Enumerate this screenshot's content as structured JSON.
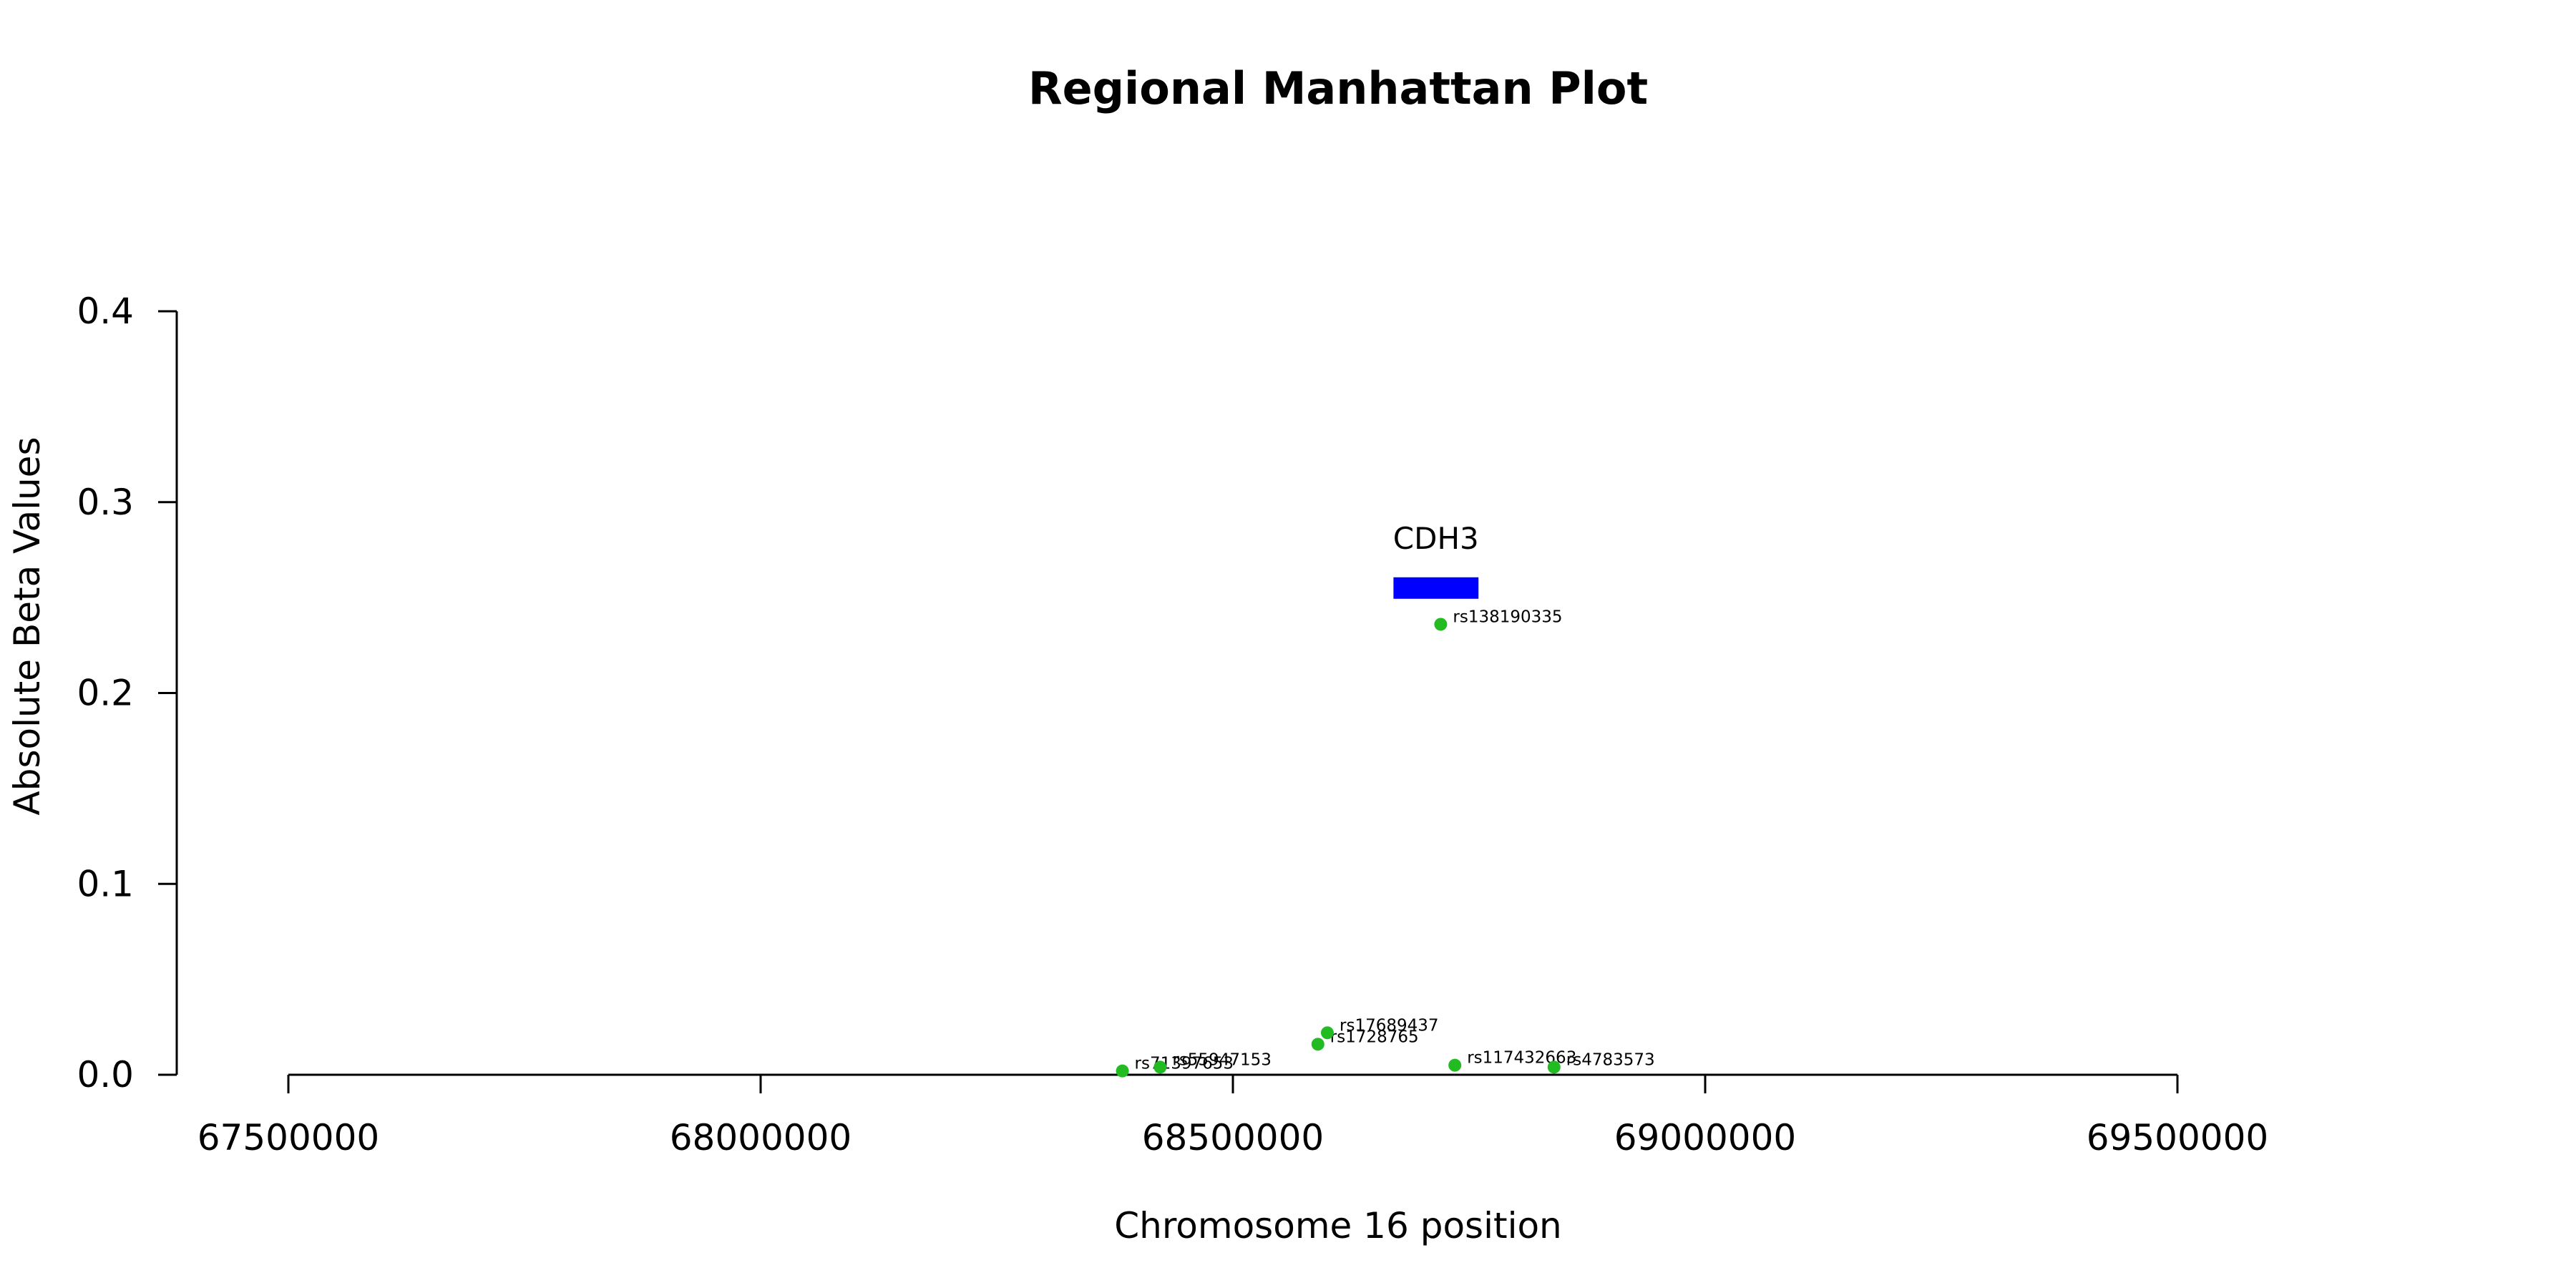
{
  "chart_data": {
    "type": "scatter",
    "title": "Regional Manhattan Plot",
    "xlabel": "Chromosome 16 position",
    "ylabel": "Absolute Beta Values",
    "xlim": [
      67500000,
      69500000
    ],
    "ylim": [
      0,
      0.4
    ],
    "xticks": [
      "67500000",
      "68000000",
      "68500000",
      "69000000",
      "69500000"
    ],
    "yticks": [
      "0.0",
      "0.1",
      "0.2",
      "0.3",
      "0.4"
    ],
    "grid": false,
    "point_color": "#22bb22",
    "gene_color": "#0000ff",
    "genes": [
      {
        "name": "CDH3",
        "start": 68670000,
        "end": 68760000,
        "y": 0.255
      }
    ],
    "points": [
      {
        "snp": "rs71397653",
        "x": 68383000,
        "y": 0.002
      },
      {
        "snp": "rs55947153",
        "x": 68423000,
        "y": 0.004
      },
      {
        "snp": "rs1728765",
        "x": 68590000,
        "y": 0.016
      },
      {
        "snp": "rs17689437",
        "x": 68600000,
        "y": 0.022
      },
      {
        "snp": "rs138190335",
        "x": 68720000,
        "y": 0.236
      },
      {
        "snp": "rs117432663",
        "x": 68735000,
        "y": 0.005
      },
      {
        "snp": "rs4783573",
        "x": 68840000,
        "y": 0.004
      }
    ]
  }
}
